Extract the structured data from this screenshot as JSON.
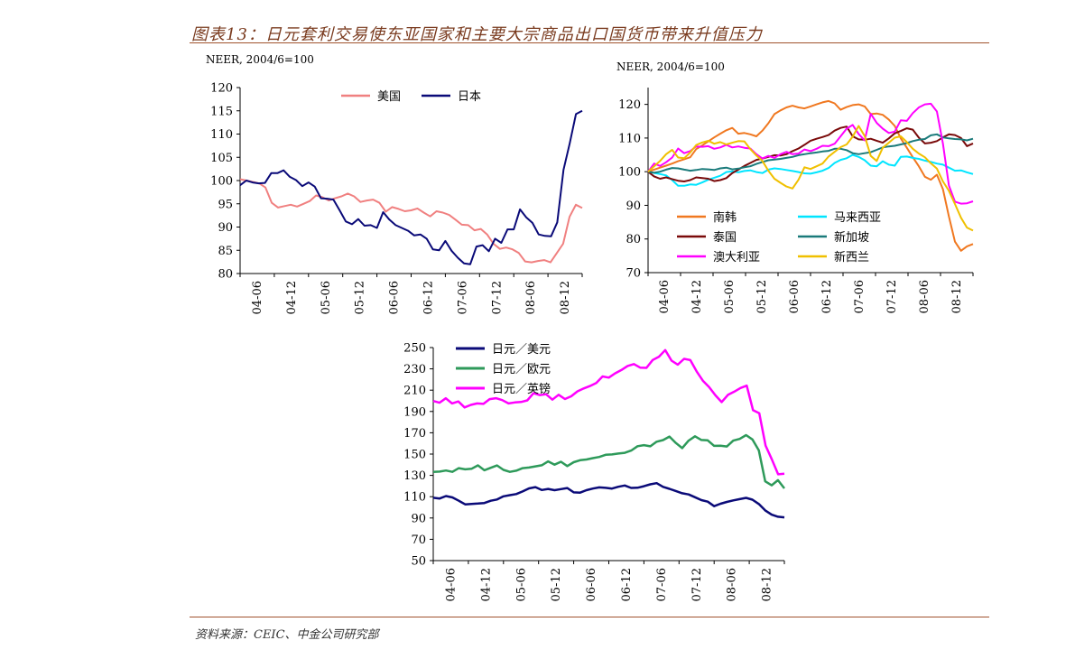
{
  "header": {
    "title": "图表13：日元套利交易使东亚国家和主要大宗商品出口国货币带来升值压力"
  },
  "footer": {
    "source": "资料来源：CEIC、中金公司研究部"
  },
  "colors": {
    "pink": "#f08080",
    "navy": "#0a0a78",
    "orange": "#f07820",
    "darkred": "#7a0a0a",
    "magenta": "#ff00ff",
    "cyan": "#00e5ff",
    "teal": "#1a7a7a",
    "gold": "#f0c000",
    "green": "#2e9a5a"
  },
  "chart_data": [
    {
      "type": "line",
      "title": "",
      "unit_label": "NEER, 2004/6=100",
      "ylim": [
        80,
        120
      ],
      "yticks": [
        80,
        85,
        90,
        95,
        100,
        105,
        110,
        115,
        120
      ],
      "xticks": [
        "04-06",
        "04-12",
        "05-06",
        "05-12",
        "06-06",
        "06-12",
        "07-06",
        "07-12",
        "08-06",
        "08-12"
      ],
      "legend_position": "top",
      "series": [
        {
          "name": "美国",
          "values": [
            100.3,
            100,
            99.7,
            99.4,
            98.5,
            95.2,
            94.2,
            94.5,
            94.8,
            94.4,
            95,
            95.6,
            96.8,
            96.4,
            95.7,
            96.2,
            96.6,
            97.2,
            96.6,
            95.4,
            95.7,
            95.9,
            95.2,
            93.3,
            94.3,
            93.9,
            93.4,
            93.6,
            94,
            93.1,
            92.3,
            93.4,
            93.1,
            92.6,
            91.6,
            90.5,
            90.4,
            89.3,
            89.6,
            88.4,
            86.4,
            85.3,
            85.6,
            85.2,
            84.4,
            82.6,
            82.4,
            82.7,
            82.9,
            82.4,
            84.4,
            86.4,
            92.2,
            94.8,
            94.1
          ]
        },
        {
          "name": "日本",
          "values": [
            99,
            100,
            99.6,
            99.4,
            99.5,
            101.6,
            101.6,
            102.2,
            100.8,
            100.1,
            98.8,
            99.6,
            98.7,
            96.2,
            96.1,
            95.9,
            93.6,
            91.2,
            90.6,
            91.7,
            90.3,
            90.4,
            89.8,
            93.2,
            91.6,
            90.4,
            89.8,
            89.2,
            88.2,
            88.4,
            87.5,
            85.2,
            85,
            87,
            84.9,
            83.4,
            82.2,
            82,
            85.8,
            86.1,
            84.8,
            87.5,
            86.6,
            89.5,
            89.5,
            93.8,
            92.1,
            90.9,
            88.4,
            88.1,
            88,
            91,
            102.3,
            108,
            114.3,
            115
          ]
        }
      ]
    },
    {
      "type": "line",
      "title": "",
      "unit_label": "NEER, 2004/6=100",
      "ylim": [
        70,
        125
      ],
      "yticks": [
        70,
        80,
        90,
        100,
        110,
        120
      ],
      "xticks": [
        "04-06",
        "04-12",
        "05-06",
        "05-12",
        "06-06",
        "06-12",
        "07-06",
        "07-12",
        "08-06",
        "08-12"
      ],
      "legend_position": "bottom-left",
      "series": [
        {
          "name": "南韩",
          "values": [
            100,
            100.6,
            101.2,
            101.8,
            102.4,
            103.1,
            103.7,
            104.3,
            106.7,
            107.8,
            109,
            110.2,
            111.3,
            112.3,
            113,
            111.3,
            111.5,
            111.1,
            110.5,
            112.2,
            114.4,
            117.1,
            118.2,
            119.1,
            119.6,
            119.1,
            118.8,
            119.4,
            120,
            120.6,
            121,
            120.3,
            118.4,
            119.2,
            119.8,
            120,
            119.4,
            117.1,
            117.3,
            116.9,
            115.5,
            113.6,
            109.9,
            107.1,
            104.3,
            101.6,
            98.5,
            97.6,
            99.1,
            94.8,
            86.7,
            79.2,
            76.5,
            77.8,
            78.5
          ]
        },
        {
          "name": "马来西亚",
          "values": [
            100,
            99.6,
            99.3,
            98.9,
            97.5,
            95.8,
            95.8,
            96.2,
            96.1,
            96.8,
            97.6,
            98.2,
            98.8,
            99.9,
            100.1,
            99.8,
            100.2,
            100.4,
            99.9,
            99.6,
            100.6,
            101,
            100.8,
            100.5,
            100.2,
            99.9,
            99.5,
            99.4,
            99.8,
            100.3,
            101.1,
            102.6,
            103.5,
            104,
            105,
            104.4,
            103.4,
            101.8,
            101.6,
            103.1,
            102.1,
            101.8,
            104.4,
            104.5,
            104.1,
            103.8,
            103.3,
            102.9,
            102.4,
            102.1,
            101.2,
            100.3,
            100.4,
            99.8,
            99.3
          ]
        },
        {
          "name": "泰国",
          "values": [
            100,
            98.6,
            97.9,
            98.3,
            97.8,
            97.3,
            97.1,
            97.5,
            98.3,
            98.1,
            97.9,
            97.2,
            97.5,
            98.1,
            99.6,
            100.6,
            101.7,
            102.6,
            103.5,
            103.9,
            104.4,
            104.9,
            104.8,
            105.2,
            106.1,
            106.9,
            108,
            109.2,
            109.8,
            110.3,
            110.9,
            112.2,
            113,
            113.4,
            110.5,
            109.6,
            109.5,
            109.8,
            109.2,
            108.6,
            109.9,
            111.4,
            112.1,
            112.9,
            112.5,
            110.1,
            108.4,
            108.6,
            109.1,
            110.2,
            111.1,
            110.9,
            110,
            107.6,
            108.4
          ]
        },
        {
          "name": "新加坡",
          "values": [
            100,
            99.7,
            100,
            100.6,
            101.1,
            101,
            100.6,
            100.3,
            100.5,
            100.8,
            100.7,
            100.5,
            101,
            101.2,
            100.7,
            100.9,
            101.3,
            101.6,
            102.3,
            102.9,
            103.4,
            103.6,
            103.8,
            104.1,
            104.4,
            104.9,
            105.2,
            105.5,
            105.7,
            106,
            106.2,
            106.8,
            106.8,
            106.4,
            105.5,
            105.2,
            105.5,
            105.8,
            106.5,
            107.2,
            107.5,
            107.7,
            108.1,
            108.5,
            109.1,
            109.5,
            109.7,
            110.8,
            111.1,
            110.2,
            109.9,
            109.7,
            109.6,
            109.3,
            109.8
          ]
        },
        {
          "name": "澳大利亚",
          "values": [
            100,
            102.4,
            101.7,
            102.8,
            104.2,
            106.9,
            105.5,
            106.1,
            107.5,
            107.4,
            107.6,
            106.8,
            107.2,
            108,
            107.2,
            107.5,
            107.1,
            106.9,
            105.2,
            103.9,
            104.7,
            104.1,
            105.2,
            105.9,
            105.2,
            105.4,
            106.6,
            106.1,
            106.8,
            107.7,
            107.6,
            108.3,
            110.5,
            112.8,
            113.9,
            111.2,
            109.3,
            117.2,
            114.5,
            112.8,
            111.5,
            111.9,
            115.3,
            115.1,
            117.4,
            119.1,
            120,
            120.2,
            117.9,
            108.3,
            95.9,
            91.1,
            90.5,
            90.6,
            91.2
          ]
        },
        {
          "name": "新西兰",
          "values": [
            100,
            101.6,
            103.2,
            105.2,
            106.5,
            104.2,
            104,
            105.7,
            107.9,
            108.7,
            109.2,
            108.3,
            108.8,
            108.1,
            108.6,
            109.1,
            109,
            106.7,
            104.8,
            103.2,
            100.3,
            97.9,
            96.7,
            95.6,
            95,
            97.6,
            101.3,
            100.8,
            101.6,
            102.4,
            104.5,
            105.9,
            107.3,
            108.1,
            110.4,
            113.6,
            110.6,
            104.7,
            103.2,
            107.1,
            108.6,
            110.1,
            110.5,
            108.8,
            106.8,
            105.4,
            104.3,
            102.5,
            100.9,
            97.1,
            94.3,
            90.4,
            86.3,
            83.4,
            82.5
          ]
        }
      ]
    },
    {
      "type": "line",
      "title": "",
      "ylim": [
        50,
        250
      ],
      "yticks": [
        50,
        70,
        90,
        110,
        130,
        150,
        170,
        190,
        210,
        230,
        250
      ],
      "xticks": [
        "04-06",
        "04-12",
        "05-06",
        "05-12",
        "06-06",
        "06-12",
        "07-06",
        "07-12",
        "08-06",
        "08-12"
      ],
      "legend_position": "top-left",
      "series": [
        {
          "name": "日元／美元",
          "values": [
            109,
            108.3,
            110.6,
            109.3,
            106.2,
            102.8,
            103.2,
            103.6,
            104.1,
            106.2,
            107.4,
            110.3,
            111.4,
            112.5,
            114.9,
            117.8,
            119,
            116.3,
            117.3,
            116.1,
            117.1,
            118.1,
            114.1,
            113.8,
            116.1,
            117.6,
            118.7,
            118.3,
            117.6,
            119.3,
            120.5,
            118.2,
            118.4,
            119.8,
            121.6,
            122.7,
            119.2,
            117.4,
            115.3,
            113.2,
            112.1,
            109.5,
            106.8,
            105.3,
            101.1,
            103.4,
            105.1,
            106.5,
            107.7,
            108.9,
            107.2,
            103.1,
            97.1,
            93.1,
            91.2,
            90.6
          ]
        },
        {
          "name": "日元／欧元",
          "values": [
            133.2,
            133.6,
            134.6,
            133.3,
            136.8,
            135.7,
            136.2,
            139.4,
            134.8,
            137.1,
            139.3,
            135.2,
            133.3,
            134.4,
            136.8,
            137.4,
            138.5,
            139.5,
            143.1,
            140.1,
            142.8,
            138.7,
            142.4,
            144.2,
            144.9,
            146.2,
            147.3,
            149.3,
            149.7,
            150.5,
            151.2,
            153.3,
            157.4,
            158.4,
            157.3,
            161.6,
            163.1,
            166.4,
            160.4,
            155.6,
            162.6,
            166.7,
            163.2,
            162.9,
            157.7,
            157.9,
            157.1,
            162.6,
            164.2,
            167.8,
            163.7,
            153.5,
            124.4,
            120.7,
            125.5,
            117.8
          ]
        },
        {
          "name": "日元／英镑",
          "values": [
            199.8,
            198.2,
            202.4,
            197.5,
            199.4,
            193.8,
            196.2,
            197.5,
            197.1,
            201.6,
            202.5,
            200.7,
            197.5,
            198.5,
            198.9,
            200.4,
            207.1,
            205.3,
            206.2,
            201.1,
            205.7,
            201.7,
            204.2,
            208.9,
            211.6,
            213.9,
            216.7,
            222.9,
            221.8,
            225.8,
            228.9,
            232.7,
            234.5,
            231.2,
            230.9,
            238.3,
            241.4,
            247.6,
            237.7,
            234,
            239.4,
            238.2,
            227.6,
            218.9,
            213,
            205.2,
            198.8,
            205.6,
            208.6,
            212,
            214.2,
            191.2,
            188.4,
            158,
            145.1,
            131,
            131.5
          ]
        }
      ]
    }
  ]
}
